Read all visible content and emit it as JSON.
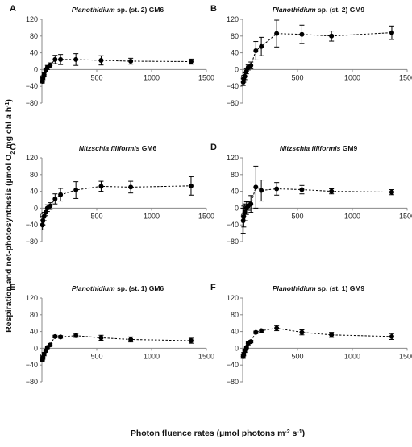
{
  "figure": {
    "ylabel": "Respiration and net-photosynthesis (µmol O₂ mg chl a h⁻¹)",
    "xlabel": "Photon fluence rates (µmol photons m⁻² s⁻¹)"
  },
  "chart_data": [
    {
      "type": "scatter",
      "panel": "A",
      "title": "Planothidium sp. (st. 2) GM6",
      "xlim": [
        0,
        1500
      ],
      "ylim": [
        -80,
        120
      ],
      "xticks": [
        0,
        500,
        1000,
        1500
      ],
      "yticks": [
        -80,
        -40,
        0,
        40,
        80,
        120
      ],
      "grid": false,
      "series": [
        {
          "points": [
            {
              "x": 5,
              "y": -28,
              "err": 4
            },
            {
              "x": 10,
              "y": -20,
              "err": 4
            },
            {
              "x": 20,
              "y": -12,
              "err": 4
            },
            {
              "x": 35,
              "y": -2,
              "err": 4
            },
            {
              "x": 50,
              "y": 5,
              "err": 5
            },
            {
              "x": 75,
              "y": 10,
              "err": 6
            },
            {
              "x": 120,
              "y": 24,
              "err": 10
            },
            {
              "x": 170,
              "y": 24,
              "err": 12
            },
            {
              "x": 310,
              "y": 24,
              "err": 14
            },
            {
              "x": 540,
              "y": 22,
              "err": 11
            },
            {
              "x": 810,
              "y": 20,
              "err": 7
            },
            {
              "x": 1360,
              "y": 19,
              "err": 6
            }
          ]
        }
      ]
    },
    {
      "type": "scatter",
      "panel": "B",
      "title": "Planothidium sp. (st. 2) GM9",
      "xlim": [
        0,
        1500
      ],
      "ylim": [
        -80,
        120
      ],
      "xticks": [
        0,
        500,
        1000,
        1500
      ],
      "yticks": [
        -80,
        -40,
        0,
        40,
        80,
        120
      ],
      "grid": false,
      "series": [
        {
          "points": [
            {
              "x": 5,
              "y": -30,
              "err": 8
            },
            {
              "x": 10,
              "y": -22,
              "err": 8
            },
            {
              "x": 20,
              "y": -16,
              "err": 8
            },
            {
              "x": 35,
              "y": -4,
              "err": 6
            },
            {
              "x": 50,
              "y": 5,
              "err": 6
            },
            {
              "x": 75,
              "y": 10,
              "err": 8
            },
            {
              "x": 120,
              "y": 45,
              "err": 22
            },
            {
              "x": 170,
              "y": 55,
              "err": 22
            },
            {
              "x": 310,
              "y": 86,
              "err": 32
            },
            {
              "x": 540,
              "y": 84,
              "err": 22
            },
            {
              "x": 810,
              "y": 80,
              "err": 12
            },
            {
              "x": 1360,
              "y": 88,
              "err": 16
            }
          ]
        }
      ]
    },
    {
      "type": "scatter",
      "panel": "C",
      "title": "Nitzschia filiformis GM6",
      "xlim": [
        0,
        1500
      ],
      "ylim": [
        -80,
        120
      ],
      "xticks": [
        0,
        500,
        1000,
        1500
      ],
      "yticks": [
        -80,
        -40,
        0,
        40,
        80,
        120
      ],
      "grid": false,
      "series": [
        {
          "points": [
            {
              "x": 5,
              "y": -40,
              "err": 12
            },
            {
              "x": 10,
              "y": -30,
              "err": 10
            },
            {
              "x": 20,
              "y": -20,
              "err": 10
            },
            {
              "x": 35,
              "y": -10,
              "err": 8
            },
            {
              "x": 50,
              "y": 0,
              "err": 8
            },
            {
              "x": 75,
              "y": 5,
              "err": 8
            },
            {
              "x": 120,
              "y": 22,
              "err": 12
            },
            {
              "x": 170,
              "y": 32,
              "err": 15
            },
            {
              "x": 310,
              "y": 43,
              "err": 20
            },
            {
              "x": 540,
              "y": 52,
              "err": 12
            },
            {
              "x": 810,
              "y": 50,
              "err": 14
            },
            {
              "x": 1360,
              "y": 53,
              "err": 22
            }
          ]
        }
      ]
    },
    {
      "type": "scatter",
      "panel": "D",
      "title": "Nitzschia filiformis GM9",
      "xlim": [
        0,
        1500
      ],
      "ylim": [
        -80,
        120
      ],
      "xticks": [
        0,
        500,
        1000,
        1500
      ],
      "yticks": [
        -80,
        -40,
        0,
        40,
        80,
        120
      ],
      "grid": false,
      "series": [
        {
          "points": [
            {
              "x": 5,
              "y": -30,
              "err": 30
            },
            {
              "x": 10,
              "y": -20,
              "err": 25
            },
            {
              "x": 20,
              "y": -10,
              "err": 20
            },
            {
              "x": 35,
              "y": 0,
              "err": 15
            },
            {
              "x": 50,
              "y": 5,
              "err": 10
            },
            {
              "x": 75,
              "y": 10,
              "err": 20
            },
            {
              "x": 120,
              "y": 50,
              "err": 50
            },
            {
              "x": 170,
              "y": 42,
              "err": 25
            },
            {
              "x": 310,
              "y": 46,
              "err": 15
            },
            {
              "x": 540,
              "y": 44,
              "err": 10
            },
            {
              "x": 810,
              "y": 40,
              "err": 6
            },
            {
              "x": 1360,
              "y": 38,
              "err": 6
            }
          ]
        }
      ]
    },
    {
      "type": "scatter",
      "panel": "E",
      "title": "Planothidium sp. (st. 1) GM6",
      "xlim": [
        0,
        1500
      ],
      "ylim": [
        -80,
        120
      ],
      "xticks": [
        0,
        500,
        1000,
        1500
      ],
      "yticks": [
        -80,
        -40,
        0,
        40,
        80,
        120
      ],
      "grid": false,
      "series": [
        {
          "points": [
            {
              "x": 5,
              "y": -28,
              "err": 4
            },
            {
              "x": 10,
              "y": -22,
              "err": 4
            },
            {
              "x": 20,
              "y": -14,
              "err": 4
            },
            {
              "x": 35,
              "y": -6,
              "err": 3
            },
            {
              "x": 50,
              "y": 2,
              "err": 3
            },
            {
              "x": 75,
              "y": 8,
              "err": 3
            },
            {
              "x": 120,
              "y": 28,
              "err": 3
            },
            {
              "x": 170,
              "y": 27,
              "err": 3
            },
            {
              "x": 310,
              "y": 30,
              "err": 4
            },
            {
              "x": 540,
              "y": 25,
              "err": 6
            },
            {
              "x": 810,
              "y": 21,
              "err": 6
            },
            {
              "x": 1360,
              "y": 18,
              "err": 6
            }
          ]
        }
      ]
    },
    {
      "type": "scatter",
      "panel": "F",
      "title": "Planothidium sp. (st. 1) GM9",
      "xlim": [
        0,
        1500
      ],
      "ylim": [
        -80,
        120
      ],
      "xticks": [
        0,
        500,
        1000,
        1500
      ],
      "yticks": [
        -80,
        -40,
        0,
        40,
        80,
        120
      ],
      "grid": false,
      "series": [
        {
          "points": [
            {
              "x": 5,
              "y": -20,
              "err": 4
            },
            {
              "x": 10,
              "y": -14,
              "err": 4
            },
            {
              "x": 20,
              "y": -6,
              "err": 4
            },
            {
              "x": 35,
              "y": 2,
              "err": 3
            },
            {
              "x": 50,
              "y": 12,
              "err": 4
            },
            {
              "x": 75,
              "y": 16,
              "err": 3
            },
            {
              "x": 120,
              "y": 38,
              "err": 3
            },
            {
              "x": 170,
              "y": 42,
              "err": 4
            },
            {
              "x": 310,
              "y": 48,
              "err": 6
            },
            {
              "x": 540,
              "y": 38,
              "err": 6
            },
            {
              "x": 810,
              "y": 32,
              "err": 6
            },
            {
              "x": 1360,
              "y": 28,
              "err": 7
            }
          ]
        }
      ]
    }
  ]
}
